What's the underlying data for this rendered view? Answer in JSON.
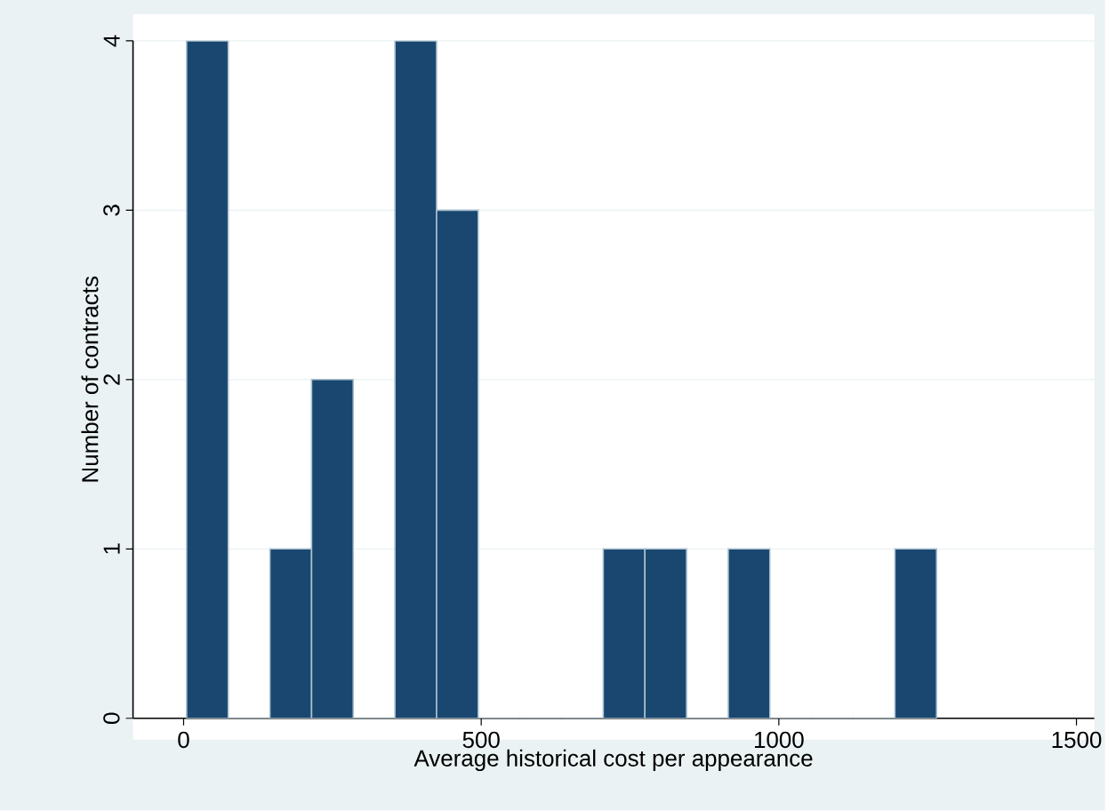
{
  "chart_data": {
    "type": "histogram",
    "xlabel": "Average historical cost per appearance",
    "ylabel": "Number of contracts",
    "bins": [
      5,
      75,
      145,
      215,
      285,
      355,
      425,
      495,
      565,
      635,
      705,
      775,
      845,
      915,
      985,
      1055,
      1125,
      1195,
      1265
    ],
    "values": [
      4,
      0,
      1,
      2,
      0,
      4,
      3,
      0,
      0,
      0,
      1,
      1,
      0,
      1,
      0,
      0,
      0,
      1
    ],
    "color": "#1a476f",
    "xlim": [
      -85,
      1530
    ],
    "ylim": [
      0,
      4
    ],
    "xticks": [
      0,
      500,
      1000,
      1500
    ],
    "yticks": [
      0,
      1,
      2,
      3,
      4
    ],
    "grid": "y"
  }
}
